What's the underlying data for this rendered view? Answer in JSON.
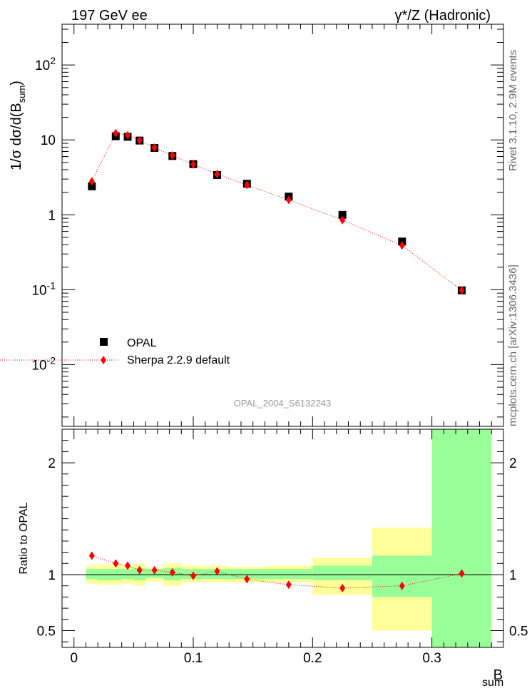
{
  "header": {
    "left": "197 GeV ee",
    "right": "γ*/Z (Hadronic)"
  },
  "side_labels": {
    "rivet": "Rivet 3.1.10, 2.9M events",
    "mcplots": "mcplots.cern.ch [arXiv:1306.3436]"
  },
  "analysis_id": "OPAL_2004_S6132243",
  "legend": {
    "data_label": "OPAL",
    "mc_label": "Sherpa 2.2.9 default"
  },
  "colors": {
    "data": "#000000",
    "mc": "#ff0000",
    "band_inner": "#99ff99",
    "band_outer": "#ffff99"
  },
  "chart_data": [
    {
      "type": "scatter",
      "panel": "main",
      "log_y": true,
      "ylabel": "1/σ dσ/d(B_sum)",
      "xlim": [
        -0.01,
        0.36
      ],
      "ylim": [
        0.0015,
        350
      ],
      "y_tick_labels": [
        "10^-2",
        "10^-1",
        "1",
        "10",
        "10^2"
      ],
      "bin_edges": [
        0.01,
        0.02,
        0.04,
        0.05,
        0.06,
        0.075,
        0.09,
        0.11,
        0.13,
        0.16,
        0.2,
        0.25,
        0.3,
        0.35
      ],
      "series": [
        {
          "name": "OPAL",
          "x": [
            0.015,
            0.035,
            0.045,
            0.055,
            0.0675,
            0.0825,
            0.1,
            0.12,
            0.145,
            0.18,
            0.225,
            0.275,
            0.325
          ],
          "y": [
            2.4,
            11.2,
            11.0,
            9.8,
            7.8,
            6.1,
            4.75,
            3.4,
            2.6,
            1.75,
            1.0,
            0.44,
            0.098
          ]
        },
        {
          "name": "Sherpa 2.2.9 default",
          "x": [
            0.015,
            0.035,
            0.045,
            0.055,
            0.0675,
            0.0825,
            0.1,
            0.12,
            0.145,
            0.18,
            0.225,
            0.275,
            0.325
          ],
          "y": [
            2.8,
            12.3,
            11.6,
            9.9,
            7.9,
            6.2,
            4.7,
            3.5,
            2.5,
            1.58,
            0.85,
            0.39,
            0.098
          ]
        }
      ]
    },
    {
      "type": "line",
      "panel": "ratio",
      "xlabel": "B_sum",
      "ylabel": "Ratio to OPAL",
      "xlim": [
        -0.01,
        0.36
      ],
      "ylim": [
        0.35,
        2.3
      ],
      "x_tick_labels": [
        "0",
        "0.1",
        "0.2",
        "0.3"
      ],
      "y_tick_labels": [
        "0.5",
        "1",
        "2"
      ],
      "bands": {
        "edges": [
          0.01,
          0.02,
          0.04,
          0.05,
          0.06,
          0.075,
          0.09,
          0.11,
          0.13,
          0.16,
          0.2,
          0.25,
          0.3,
          0.35
        ],
        "inner_lo": [
          0.96,
          0.95,
          0.96,
          0.95,
          0.97,
          0.95,
          0.96,
          0.96,
          0.96,
          0.96,
          0.95,
          0.8,
          0.35
        ],
        "inner_hi": [
          1.05,
          1.05,
          1.05,
          1.06,
          1.05,
          1.06,
          1.05,
          1.05,
          1.05,
          1.05,
          1.08,
          1.17,
          2.3
        ],
        "outer_lo": [
          0.92,
          0.91,
          0.92,
          0.9,
          0.94,
          0.9,
          0.93,
          0.93,
          0.93,
          0.93,
          0.82,
          0.5,
          0.35
        ],
        "outer_hi": [
          1.08,
          1.09,
          1.08,
          1.1,
          1.06,
          1.1,
          1.08,
          1.08,
          1.07,
          1.08,
          1.15,
          1.42,
          2.3
        ]
      },
      "series": [
        {
          "name": "Sherpa 2.2.9 default",
          "x": [
            0.015,
            0.035,
            0.045,
            0.055,
            0.0675,
            0.0825,
            0.1,
            0.12,
            0.145,
            0.18,
            0.225,
            0.275,
            0.325
          ],
          "y": [
            1.17,
            1.1,
            1.08,
            1.04,
            1.04,
            1.02,
            0.99,
            1.03,
            0.96,
            0.91,
            0.88,
            0.9,
            1.01
          ]
        }
      ]
    }
  ]
}
